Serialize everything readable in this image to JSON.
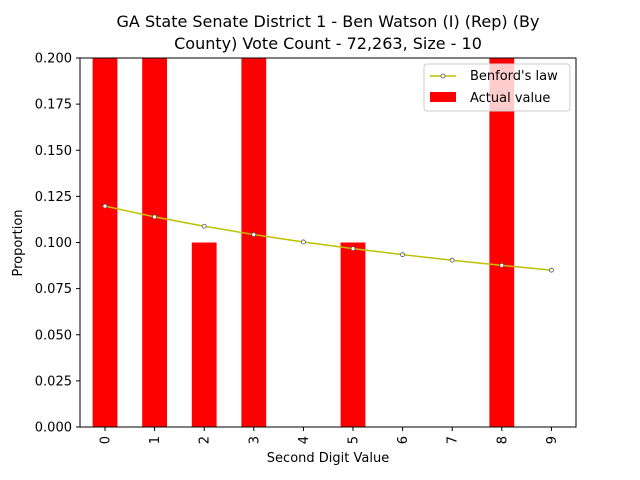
{
  "chart_data": {
    "type": "bar",
    "title_line1": "GA State Senate District 1 - Ben Watson (I) (Rep) (By",
    "title_line2": "County) Vote Count - 72,263, Size - 10",
    "xlabel": "Second Digit Value",
    "ylabel": "Proportion",
    "categories": [
      "0",
      "1",
      "2",
      "3",
      "4",
      "5",
      "6",
      "7",
      "8",
      "9"
    ],
    "ylim": [
      0,
      0.2
    ],
    "yticks": [
      "0.000",
      "0.025",
      "0.050",
      "0.075",
      "0.100",
      "0.125",
      "0.150",
      "0.175",
      "0.200"
    ],
    "legend_position": "top-right",
    "grid": false,
    "series": [
      {
        "name": "Benford's law",
        "kind": "line",
        "color": "#bfbf00",
        "values": [
          0.1197,
          0.1139,
          0.1088,
          0.1043,
          0.1003,
          0.0967,
          0.0934,
          0.0904,
          0.0876,
          0.085
        ]
      },
      {
        "name": "Actual value",
        "kind": "bar",
        "color": "#ff0000",
        "values": [
          0.2,
          0.2,
          0.1,
          0.2,
          0.0,
          0.1,
          0.0,
          0.0,
          0.2,
          0.0
        ]
      }
    ]
  }
}
